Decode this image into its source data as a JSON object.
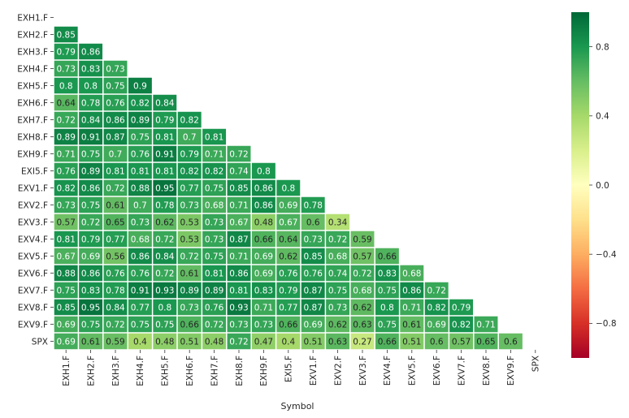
{
  "chart_data": {
    "type": "heatmap",
    "subtype": "lower-triangle correlation matrix",
    "labels": [
      "EXH1.F",
      "EXH2.F",
      "EXH3.F",
      "EXH4.F",
      "EXH5.F",
      "EXH6.F",
      "EXH7.F",
      "EXH8.F",
      "EXH9.F",
      "EXI5.F",
      "EXV1.F",
      "EXV2.F",
      "EXV3.F",
      "EXV4.F",
      "EXV5.F",
      "EXV6.F",
      "EXV7.F",
      "EXV8.F",
      "EXV9.F",
      "SPX"
    ],
    "xlabel": "Symbol",
    "ylabel": "",
    "colormap": "RdYlGn",
    "vmin": -1.0,
    "vmax": 1.0,
    "colorbar_ticks": [
      0.8,
      0.4,
      0.0,
      -0.4,
      -0.8
    ],
    "colorbar_tick_labels": [
      "0.8",
      "0.4",
      "0.0",
      "−0.4",
      "−0.8"
    ],
    "values": [
      [],
      [
        "0.85"
      ],
      [
        "0.79",
        "0.86"
      ],
      [
        "0.73",
        "0.83",
        "0.73"
      ],
      [
        "0.8",
        "0.8",
        "0.75",
        "0.9"
      ],
      [
        "0.64",
        "0.78",
        "0.76",
        "0.82",
        "0.84"
      ],
      [
        "0.72",
        "0.84",
        "0.86",
        "0.89",
        "0.79",
        "0.82"
      ],
      [
        "0.89",
        "0.91",
        "0.87",
        "0.75",
        "0.81",
        "0.7",
        "0.81"
      ],
      [
        "0.71",
        "0.75",
        "0.7",
        "0.76",
        "0.91",
        "0.79",
        "0.71",
        "0.72"
      ],
      [
        "0.76",
        "0.89",
        "0.81",
        "0.81",
        "0.81",
        "0.82",
        "0.82",
        "0.74",
        "0.8"
      ],
      [
        "0.82",
        "0.86",
        "0.72",
        "0.88",
        "0.95",
        "0.77",
        "0.75",
        "0.85",
        "0.86",
        "0.8"
      ],
      [
        "0.73",
        "0.75",
        "0.61",
        "0.7",
        "0.78",
        "0.73",
        "0.68",
        "0.71",
        "0.86",
        "0.69",
        "0.78"
      ],
      [
        "0.57",
        "0.72",
        "0.65",
        "0.73",
        "0.62",
        "0.53",
        "0.73",
        "0.67",
        "0.48",
        "0.67",
        "0.6",
        "0.34"
      ],
      [
        "0.81",
        "0.79",
        "0.77",
        "0.68",
        "0.72",
        "0.53",
        "0.73",
        "0.87",
        "0.66",
        "0.64",
        "0.73",
        "0.72",
        "0.59"
      ],
      [
        "0.67",
        "0.69",
        "0.56",
        "0.86",
        "0.84",
        "0.72",
        "0.75",
        "0.71",
        "0.69",
        "0.62",
        "0.85",
        "0.68",
        "0.57",
        "0.66"
      ],
      [
        "0.88",
        "0.86",
        "0.76",
        "0.76",
        "0.72",
        "0.61",
        "0.81",
        "0.86",
        "0.69",
        "0.76",
        "0.76",
        "0.74",
        "0.72",
        "0.83",
        "0.68"
      ],
      [
        "0.75",
        "0.83",
        "0.78",
        "0.91",
        "0.93",
        "0.89",
        "0.89",
        "0.81",
        "0.83",
        "0.79",
        "0.87",
        "0.75",
        "0.68",
        "0.75",
        "0.86",
        "0.72"
      ],
      [
        "0.85",
        "0.95",
        "0.84",
        "0.77",
        "0.8",
        "0.73",
        "0.76",
        "0.93",
        "0.71",
        "0.77",
        "0.87",
        "0.73",
        "0.62",
        "0.8",
        "0.71",
        "0.82",
        "0.79"
      ],
      [
        "0.69",
        "0.75",
        "0.72",
        "0.75",
        "0.75",
        "0.66",
        "0.72",
        "0.73",
        "0.73",
        "0.66",
        "0.69",
        "0.62",
        "0.63",
        "0.75",
        "0.61",
        "0.69",
        "0.82",
        "0.71"
      ],
      [
        "0.69",
        "0.61",
        "0.59",
        "0.4",
        "0.48",
        "0.51",
        "0.48",
        "0.72",
        "0.47",
        "0.4",
        "0.51",
        "0.63",
        "0.27",
        "0.66",
        "0.51",
        "0.6",
        "0.57",
        "0.65",
        "0.6"
      ]
    ]
  }
}
